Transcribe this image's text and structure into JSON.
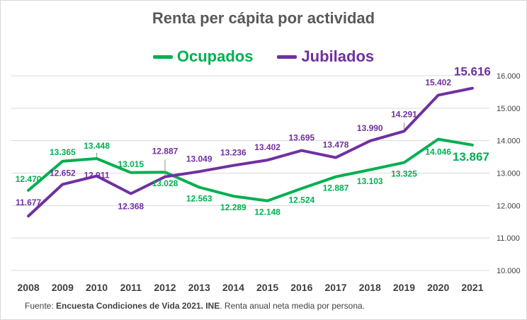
{
  "chart_data": {
    "type": "line",
    "title": "Renta per cápita por actividad",
    "x": [
      "2008",
      "2009",
      "2010",
      "2011",
      "2012",
      "2013",
      "2014",
      "2015",
      "2016",
      "2017",
      "2018",
      "2019",
      "2020",
      "2021"
    ],
    "ylim": [
      10000,
      16000
    ],
    "yticks": [
      "10.000",
      "11.000",
      "12.000",
      "13.000",
      "14.000",
      "15.000",
      "16.000"
    ],
    "ytick_values": [
      10000,
      11000,
      12000,
      13000,
      14000,
      15000,
      16000
    ],
    "grid": true,
    "legend_position": "top-center",
    "series": [
      {
        "name": "Ocupados",
        "color": "#00b050",
        "values": [
          12470,
          13365,
          13448,
          13015,
          13028,
          12563,
          12289,
          12148,
          12524,
          12887,
          13103,
          13325,
          14046,
          13867
        ],
        "labels": [
          "12.470",
          "13.365",
          "13.448",
          "13.015",
          "13.028",
          "12.563",
          "12.289",
          "12.148",
          "12.524",
          "12.887",
          "13.103",
          "13.325",
          "14.046",
          "13.867"
        ]
      },
      {
        "name": "Jubilados",
        "color": "#7030a0",
        "values": [
          11677,
          12652,
          12911,
          12368,
          12887,
          13049,
          13236,
          13402,
          13695,
          13478,
          13990,
          14291,
          15402,
          15616
        ],
        "labels": [
          "11.677",
          "12.652",
          "12.911",
          "12.368",
          "12.887",
          "13.049",
          "13.236",
          "13.402",
          "13.695",
          "13.478",
          "13.990",
          "14.291",
          "15.402",
          "15.616"
        ]
      }
    ]
  },
  "source": {
    "prefix": "Fuente: ",
    "bold": "Encuesta Condiciones de Vida 2021. INE",
    "suffix": ". Renta anual neta media por persona."
  }
}
